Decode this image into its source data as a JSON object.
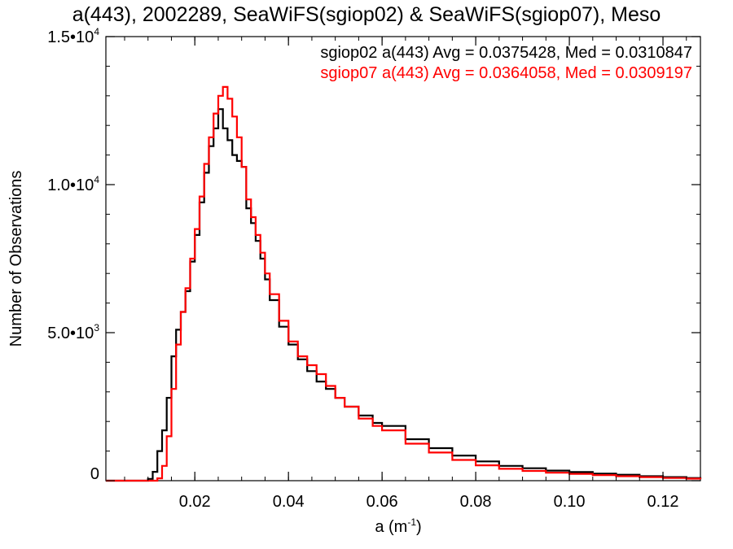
{
  "chart_data": {
    "type": "line",
    "step": true,
    "title": "a(443), 2002289, SeaWiFS(sgiop02) & SeaWiFS(sgiop07), Meso",
    "xlabel": "a (m",
    "xlabel_sup": "-1",
    "xlabel_close": ")",
    "ylabel": "Number of Observations",
    "xlim": [
      0.001,
      0.128
    ],
    "ylim": [
      0,
      15000
    ],
    "x_ticks": [
      {
        "value": 0.02,
        "label": "0.02"
      },
      {
        "value": 0.04,
        "label": "0.04"
      },
      {
        "value": 0.06,
        "label": "0.06"
      },
      {
        "value": 0.08,
        "label": "0.08"
      },
      {
        "value": 0.1,
        "label": "0.10"
      },
      {
        "value": 0.12,
        "label": "0.12"
      }
    ],
    "y_ticks": [
      {
        "value": 0,
        "mantissa": "0",
        "exp": ""
      },
      {
        "value": 5000,
        "mantissa": "5.0•10",
        "exp": "3"
      },
      {
        "value": 10000,
        "mantissa": "1.0•10",
        "exp": "4"
      },
      {
        "value": 15000,
        "mantissa": "1.5•10",
        "exp": "4"
      }
    ],
    "annotations": [
      {
        "text": "sgiop02 a(443) Avg = 0.0375428, Med = 0.0310847",
        "color": "#000000"
      },
      {
        "text": "sgiop07 a(443) Avg = 0.0364058, Med = 0.0309197",
        "color": "#ff0000"
      }
    ],
    "series": [
      {
        "color": "#000000",
        "x": [
          0.001,
          0.008,
          0.01,
          0.011,
          0.012,
          0.013,
          0.014,
          0.015,
          0.016,
          0.017,
          0.018,
          0.019,
          0.02,
          0.021,
          0.022,
          0.023,
          0.024,
          0.025,
          0.026,
          0.027,
          0.028,
          0.029,
          0.03,
          0.031,
          0.032,
          0.033,
          0.034,
          0.035,
          0.036,
          0.038,
          0.04,
          0.042,
          0.044,
          0.046,
          0.048,
          0.05,
          0.052,
          0.055,
          0.058,
          0.06,
          0.065,
          0.07,
          0.075,
          0.08,
          0.085,
          0.09,
          0.095,
          0.1,
          0.105,
          0.11,
          0.115,
          0.12,
          0.125,
          0.128
        ],
        "y": [
          0,
          0,
          60,
          300,
          1000,
          1700,
          2800,
          4200,
          5100,
          5700,
          6400,
          7400,
          8300,
          9400,
          10400,
          11300,
          11900,
          12550,
          11900,
          11500,
          11000,
          10800,
          10600,
          9200,
          8700,
          8100,
          7500,
          6800,
          6100,
          5200,
          4600,
          4100,
          3700,
          3350,
          3100,
          2800,
          2500,
          2200,
          1950,
          1850,
          1400,
          1100,
          850,
          650,
          500,
          420,
          340,
          290,
          240,
          200,
          150,
          120,
          90,
          60
        ]
      },
      {
        "color": "#ff0000",
        "x": [
          0.001,
          0.008,
          0.01,
          0.012,
          0.013,
          0.014,
          0.015,
          0.016,
          0.017,
          0.018,
          0.019,
          0.02,
          0.021,
          0.022,
          0.023,
          0.024,
          0.025,
          0.026,
          0.027,
          0.028,
          0.029,
          0.03,
          0.031,
          0.032,
          0.033,
          0.034,
          0.035,
          0.036,
          0.038,
          0.04,
          0.042,
          0.044,
          0.046,
          0.048,
          0.05,
          0.052,
          0.055,
          0.058,
          0.06,
          0.065,
          0.07,
          0.075,
          0.08,
          0.085,
          0.09,
          0.095,
          0.1,
          0.105,
          0.11,
          0.115,
          0.12,
          0.125,
          0.128
        ],
        "y": [
          0,
          0,
          0,
          80,
          500,
          1500,
          3100,
          4600,
          5700,
          6500,
          7500,
          8500,
          9600,
          10700,
          11600,
          12400,
          13000,
          13300,
          12900,
          12300,
          11600,
          10600,
          9500,
          8900,
          8300,
          7700,
          7000,
          6300,
          5400,
          4700,
          4200,
          3900,
          3600,
          3200,
          2800,
          2500,
          2100,
          1850,
          1700,
          1250,
          950,
          700,
          520,
          400,
          330,
          270,
          230,
          190,
          150,
          120,
          90,
          70,
          50
        ]
      }
    ],
    "grid": false,
    "legend": "top-right"
  }
}
